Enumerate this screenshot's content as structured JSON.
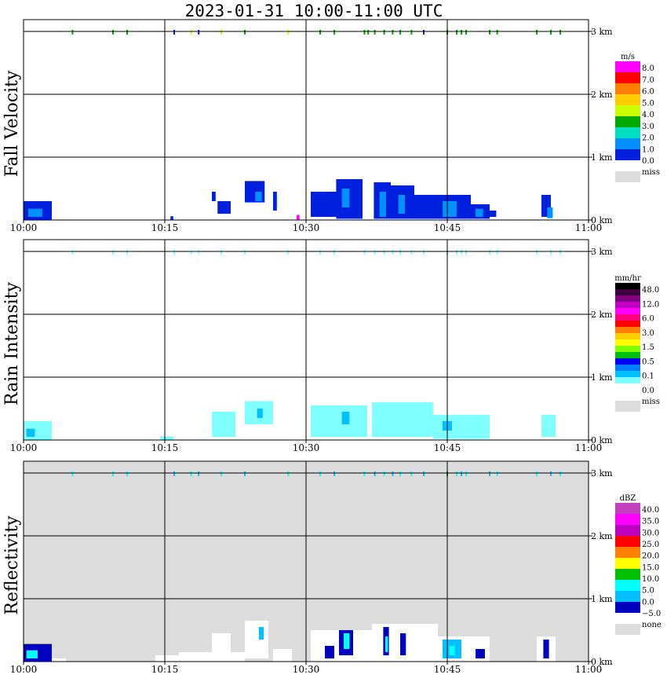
{
  "title": "2023-01-31   10:00-11:00 UTC",
  "chart_data": [
    {
      "type": "heatmap",
      "ylabel": "Fall Velocity",
      "legend_title": "m/s",
      "legend_levels": [
        "8.0",
        "7.0",
        "6.0",
        "5.0",
        "4.0",
        "3.0",
        "2.0",
        "1.0",
        "0.0"
      ],
      "legend_colors": [
        "#ff00ff",
        "#ff0000",
        "#ff8000",
        "#ffcc00",
        "#ccff00",
        "#00aa00",
        "#00e0c0",
        "#0090ff",
        "#0020e0"
      ],
      "missing_label": "miss",
      "missing_color": "#dcdcdc",
      "background": "#ffffff",
      "x_ticks": [
        "10:00",
        "10:15",
        "10:30",
        "10:45",
        "11:00"
      ],
      "y_ticks": [
        "0 km",
        "1 km",
        "2 km",
        "3 km"
      ],
      "xlim_min": [
        0,
        60
      ],
      "ylim_km": [
        0,
        3
      ],
      "cells": [
        {
          "t": 0.0,
          "t2": 3.0,
          "h0": 0.0,
          "h1": 0.3,
          "c": "#0020e0"
        },
        {
          "t": 0.5,
          "t2": 2.0,
          "h0": 0.05,
          "h1": 0.18,
          "c": "#0090ff"
        },
        {
          "t": 15.6,
          "t2": 15.9,
          "h0": 0.0,
          "h1": 0.06,
          "c": "#0020e0"
        },
        {
          "t": 20.0,
          "t2": 20.4,
          "h0": 0.3,
          "h1": 0.45,
          "c": "#0020e0"
        },
        {
          "t": 20.6,
          "t2": 22.0,
          "h0": 0.1,
          "h1": 0.3,
          "c": "#0020e0"
        },
        {
          "t": 23.5,
          "t2": 25.6,
          "h0": 0.28,
          "h1": 0.62,
          "c": "#0020e0"
        },
        {
          "t": 24.6,
          "t2": 25.3,
          "h0": 0.3,
          "h1": 0.45,
          "c": "#0090ff"
        },
        {
          "t": 26.5,
          "t2": 26.9,
          "h0": 0.15,
          "h1": 0.45,
          "c": "#0020e0"
        },
        {
          "t": 29.0,
          "t2": 29.3,
          "h0": 0.0,
          "h1": 0.08,
          "c": "#ff00ff"
        },
        {
          "t": 30.5,
          "t2": 33.5,
          "h0": 0.05,
          "h1": 0.45,
          "c": "#0020e0"
        },
        {
          "t": 33.2,
          "t2": 36.0,
          "h0": 0.02,
          "h1": 0.65,
          "c": "#0020e0"
        },
        {
          "t": 33.8,
          "t2": 34.6,
          "h0": 0.2,
          "h1": 0.5,
          "c": "#0090ff"
        },
        {
          "t": 37.2,
          "t2": 39.0,
          "h0": 0.02,
          "h1": 0.6,
          "c": "#0020e0"
        },
        {
          "t": 37.8,
          "t2": 38.5,
          "h0": 0.05,
          "h1": 0.45,
          "c": "#0090ff"
        },
        {
          "t": 39.0,
          "t2": 41.5,
          "h0": 0.02,
          "h1": 0.55,
          "c": "#0020e0"
        },
        {
          "t": 39.8,
          "t2": 40.5,
          "h0": 0.1,
          "h1": 0.4,
          "c": "#0090ff"
        },
        {
          "t": 41.5,
          "t2": 43.5,
          "h0": 0.02,
          "h1": 0.4,
          "c": "#0020e0"
        },
        {
          "t": 43.5,
          "t2": 47.5,
          "h0": 0.02,
          "h1": 0.4,
          "c": "#0020e0"
        },
        {
          "t": 44.5,
          "t2": 46.0,
          "h0": 0.05,
          "h1": 0.3,
          "c": "#0090ff"
        },
        {
          "t": 47.5,
          "t2": 49.5,
          "h0": 0.02,
          "h1": 0.25,
          "c": "#0020e0"
        },
        {
          "t": 48.0,
          "t2": 48.8,
          "h0": 0.05,
          "h1": 0.18,
          "c": "#0090ff"
        },
        {
          "t": 49.5,
          "t2": 50.2,
          "h0": 0.05,
          "h1": 0.15,
          "c": "#0020e0"
        },
        {
          "t": 55.0,
          "t2": 56.0,
          "h0": 0.05,
          "h1": 0.4,
          "c": "#0020e0"
        },
        {
          "t": 55.6,
          "t2": 56.2,
          "h0": 0.03,
          "h1": 0.2,
          "c": "#0090ff"
        }
      ],
      "top_echoes": [
        {
          "t": 5.2,
          "c": "#00aa00"
        },
        {
          "t": 9.5,
          "c": "#00aa00"
        },
        {
          "t": 11.0,
          "c": "#00aa00"
        },
        {
          "t": 16.0,
          "c": "#0020e0"
        },
        {
          "t": 17.8,
          "c": "#ccff00"
        },
        {
          "t": 18.6,
          "c": "#0020e0"
        },
        {
          "t": 21.0,
          "c": "#ccff00"
        },
        {
          "t": 23.5,
          "c": "#00aa00"
        },
        {
          "t": 28.1,
          "c": "#ccff00"
        },
        {
          "t": 31.5,
          "c": "#00aa00"
        },
        {
          "t": 33.0,
          "c": "#00aa00"
        },
        {
          "t": 36.2,
          "c": "#00aa00"
        },
        {
          "t": 36.6,
          "c": "#00aa00"
        },
        {
          "t": 37.3,
          "c": "#00aa00"
        },
        {
          "t": 38.3,
          "c": "#00aa00"
        },
        {
          "t": 39.2,
          "c": "#00aa00"
        },
        {
          "t": 40.0,
          "c": "#00aa00"
        },
        {
          "t": 41.2,
          "c": "#00aa00"
        },
        {
          "t": 42.5,
          "c": "#0020e0"
        },
        {
          "t": 45.0,
          "c": "#00aa00"
        },
        {
          "t": 46.0,
          "c": "#00aa00"
        },
        {
          "t": 46.5,
          "c": "#00aa00"
        },
        {
          "t": 47.0,
          "c": "#00aa00"
        },
        {
          "t": 49.5,
          "c": "#00aa00"
        },
        {
          "t": 50.3,
          "c": "#00aa00"
        },
        {
          "t": 54.5,
          "c": "#00aa00"
        },
        {
          "t": 56.0,
          "c": "#00aa00"
        },
        {
          "t": 57.0,
          "c": "#00aa00"
        }
      ]
    },
    {
      "type": "heatmap",
      "ylabel": "Rain Intensity",
      "legend_title": "mm/hr",
      "legend_levels": [
        "48.0",
        "12.0",
        "6.0",
        "3.0",
        "1.5",
        "0.5",
        "0.1",
        "0.0"
      ],
      "legend_colors": [
        "#000000",
        "#400040",
        "#800080",
        "#c000c0",
        "#ff00ff",
        "#ff0080",
        "#ff0000",
        "#ff8000",
        "#ffcc00",
        "#ffff00",
        "#80ff00",
        "#00c000",
        "#0000ff",
        "#0080ff",
        "#00c0ff",
        "#80ffff",
        "#ffffff"
      ],
      "missing_label": "miss",
      "missing_color": "#dcdcdc",
      "background": "#ffffff",
      "x_ticks": [
        "10:00",
        "10:15",
        "10:30",
        "10:45",
        "11:00"
      ],
      "y_ticks": [
        "0 km",
        "1 km",
        "2 km",
        "3 km"
      ],
      "xlim_min": [
        0,
        60
      ],
      "ylim_km": [
        0,
        3
      ],
      "cells": [
        {
          "t": 0.0,
          "t2": 3.0,
          "h0": 0.0,
          "h1": 0.3,
          "c": "#80ffff"
        },
        {
          "t": 0.3,
          "t2": 1.2,
          "h0": 0.05,
          "h1": 0.18,
          "c": "#00c0ff"
        },
        {
          "t": 14.5,
          "t2": 15.9,
          "h0": 0.0,
          "h1": 0.06,
          "c": "#80ffff"
        },
        {
          "t": 20.0,
          "t2": 22.5,
          "h0": 0.05,
          "h1": 0.45,
          "c": "#80ffff"
        },
        {
          "t": 23.5,
          "t2": 26.5,
          "h0": 0.25,
          "h1": 0.62,
          "c": "#80ffff"
        },
        {
          "t": 24.8,
          "t2": 25.4,
          "h0": 0.35,
          "h1": 0.5,
          "c": "#00c0ff"
        },
        {
          "t": 30.5,
          "t2": 36.5,
          "h0": 0.05,
          "h1": 0.55,
          "c": "#80ffff"
        },
        {
          "t": 33.8,
          "t2": 34.6,
          "h0": 0.25,
          "h1": 0.45,
          "c": "#00c0ff"
        },
        {
          "t": 37.0,
          "t2": 43.5,
          "h0": 0.05,
          "h1": 0.6,
          "c": "#80ffff"
        },
        {
          "t": 43.5,
          "t2": 49.5,
          "h0": 0.02,
          "h1": 0.4,
          "c": "#80ffff"
        },
        {
          "t": 44.5,
          "t2": 45.5,
          "h0": 0.15,
          "h1": 0.3,
          "c": "#00c0ff"
        },
        {
          "t": 55.0,
          "t2": 56.5,
          "h0": 0.05,
          "h1": 0.4,
          "c": "#80ffff"
        }
      ],
      "top_echoes": [
        {
          "t": 5.2,
          "c": "#80ffff"
        },
        {
          "t": 9.5,
          "c": "#80ffff"
        },
        {
          "t": 11.0,
          "c": "#80ffff"
        },
        {
          "t": 16.0,
          "c": "#80ffff"
        },
        {
          "t": 17.8,
          "c": "#80ffff"
        },
        {
          "t": 18.6,
          "c": "#80ffff"
        },
        {
          "t": 21.0,
          "c": "#80ffff"
        },
        {
          "t": 23.5,
          "c": "#80ffff"
        },
        {
          "t": 28.1,
          "c": "#80ffff"
        },
        {
          "t": 31.5,
          "c": "#80ffff"
        },
        {
          "t": 33.0,
          "c": "#80ffff"
        },
        {
          "t": 36.2,
          "c": "#80ffff"
        },
        {
          "t": 37.3,
          "c": "#80ffff"
        },
        {
          "t": 38.3,
          "c": "#80ffff"
        },
        {
          "t": 39.2,
          "c": "#80ffff"
        },
        {
          "t": 40.0,
          "c": "#80ffff"
        },
        {
          "t": 41.2,
          "c": "#80ffff"
        },
        {
          "t": 42.5,
          "c": "#80ffff"
        },
        {
          "t": 45.0,
          "c": "#80ffff"
        },
        {
          "t": 46.0,
          "c": "#80ffff"
        },
        {
          "t": 46.5,
          "c": "#80ffff"
        },
        {
          "t": 47.0,
          "c": "#80ffff"
        },
        {
          "t": 49.5,
          "c": "#80ffff"
        },
        {
          "t": 50.3,
          "c": "#80ffff"
        },
        {
          "t": 54.5,
          "c": "#80ffff"
        },
        {
          "t": 56.0,
          "c": "#80ffff"
        },
        {
          "t": 57.0,
          "c": "#80ffff"
        }
      ]
    },
    {
      "type": "heatmap",
      "ylabel": "Reflectivity",
      "legend_title": "dBZ",
      "legend_levels": [
        "40.0",
        "35.0",
        "30.0",
        "25.0",
        "20.0",
        "15.0",
        "10.0",
        "5.0",
        "0.0",
        "−5.0"
      ],
      "legend_colors": [
        "#c040c0",
        "#ff00ff",
        "#c000c0",
        "#ff0000",
        "#ff8000",
        "#ffff00",
        "#00c000",
        "#00ffff",
        "#00c0ff",
        "#0000c0"
      ],
      "missing_label": "none",
      "missing_color": "#dcdcdc",
      "background": "#dcdcdc",
      "x_ticks": [
        "10:00",
        "10:15",
        "10:30",
        "10:45",
        "11:00"
      ],
      "y_ticks": [
        "0 km",
        "1 km",
        "2 km",
        "3 km"
      ],
      "xlim_min": [
        0,
        60
      ],
      "ylim_km": [
        0,
        3
      ],
      "cells": [
        {
          "t": 0.0,
          "t2": 3.0,
          "h0": 0.0,
          "h1": 0.28,
          "c": "#0000c0"
        },
        {
          "t": 0.3,
          "t2": 1.5,
          "h0": 0.05,
          "h1": 0.18,
          "c": "#00ffff"
        },
        {
          "t": 3.0,
          "t2": 4.5,
          "h0": 0.0,
          "h1": 0.05,
          "c": "#ffffff"
        },
        {
          "t": 14.0,
          "t2": 16.5,
          "h0": 0.0,
          "h1": 0.1,
          "c": "#ffffff"
        },
        {
          "t": 16.5,
          "t2": 23.5,
          "h0": 0.0,
          "h1": 0.15,
          "c": "#ffffff"
        },
        {
          "t": 20.0,
          "t2": 22.0,
          "h0": 0.1,
          "h1": 0.45,
          "c": "#ffffff"
        },
        {
          "t": 23.5,
          "t2": 26.0,
          "h0": 0.05,
          "h1": 0.65,
          "c": "#ffffff"
        },
        {
          "t": 25.0,
          "t2": 25.5,
          "h0": 0.35,
          "h1": 0.55,
          "c": "#00c0ff"
        },
        {
          "t": 26.5,
          "t2": 28.5,
          "h0": 0.0,
          "h1": 0.2,
          "c": "#ffffff"
        },
        {
          "t": 30.5,
          "t2": 37.0,
          "h0": 0.0,
          "h1": 0.5,
          "c": "#ffffff"
        },
        {
          "t": 32.0,
          "t2": 33.0,
          "h0": 0.05,
          "h1": 0.25,
          "c": "#0000c0"
        },
        {
          "t": 33.5,
          "t2": 35.0,
          "h0": 0.1,
          "h1": 0.5,
          "c": "#0000c0"
        },
        {
          "t": 34.0,
          "t2": 34.6,
          "h0": 0.2,
          "h1": 0.45,
          "c": "#00ffff"
        },
        {
          "t": 37.0,
          "t2": 44.0,
          "h0": 0.0,
          "h1": 0.6,
          "c": "#ffffff"
        },
        {
          "t": 38.2,
          "t2": 38.8,
          "h0": 0.1,
          "h1": 0.55,
          "c": "#0000c0"
        },
        {
          "t": 38.4,
          "t2": 38.7,
          "h0": 0.15,
          "h1": 0.4,
          "c": "#00ffff"
        },
        {
          "t": 40.0,
          "t2": 40.6,
          "h0": 0.1,
          "h1": 0.45,
          "c": "#0000c0"
        },
        {
          "t": 44.0,
          "t2": 49.5,
          "h0": 0.0,
          "h1": 0.4,
          "c": "#ffffff"
        },
        {
          "t": 44.5,
          "t2": 46.5,
          "h0": 0.05,
          "h1": 0.35,
          "c": "#00c0ff"
        },
        {
          "t": 45.2,
          "t2": 45.8,
          "h0": 0.1,
          "h1": 0.25,
          "c": "#00ffff"
        },
        {
          "t": 48.0,
          "t2": 49.0,
          "h0": 0.05,
          "h1": 0.2,
          "c": "#0000c0"
        },
        {
          "t": 54.5,
          "t2": 56.5,
          "h0": 0.0,
          "h1": 0.4,
          "c": "#ffffff"
        },
        {
          "t": 55.2,
          "t2": 55.8,
          "h0": 0.05,
          "h1": 0.35,
          "c": "#0000c0"
        }
      ],
      "top_echoes": [
        {
          "t": 5.2,
          "c": "#00ffff"
        },
        {
          "t": 9.5,
          "c": "#00ffff"
        },
        {
          "t": 11.0,
          "c": "#00ffff"
        },
        {
          "t": 16.0,
          "c": "#00c0ff"
        },
        {
          "t": 17.8,
          "c": "#00ffff"
        },
        {
          "t": 18.6,
          "c": "#00c0ff"
        },
        {
          "t": 21.0,
          "c": "#00ffff"
        },
        {
          "t": 23.5,
          "c": "#00c0ff"
        },
        {
          "t": 28.1,
          "c": "#00ffff"
        },
        {
          "t": 31.5,
          "c": "#00ffff"
        },
        {
          "t": 33.0,
          "c": "#00c0ff"
        },
        {
          "t": 36.2,
          "c": "#00ffff"
        },
        {
          "t": 37.3,
          "c": "#00c0ff"
        },
        {
          "t": 38.3,
          "c": "#00ffff"
        },
        {
          "t": 39.2,
          "c": "#00c0ff"
        },
        {
          "t": 40.0,
          "c": "#00ffff"
        },
        {
          "t": 41.2,
          "c": "#00ffff"
        },
        {
          "t": 42.5,
          "c": "#00c0ff"
        },
        {
          "t": 45.0,
          "c": "#00c000"
        },
        {
          "t": 46.0,
          "c": "#00ffff"
        },
        {
          "t": 46.5,
          "c": "#00c0ff"
        },
        {
          "t": 47.0,
          "c": "#00ffff"
        },
        {
          "t": 49.5,
          "c": "#00c0ff"
        },
        {
          "t": 50.3,
          "c": "#00ffff"
        },
        {
          "t": 54.5,
          "c": "#00ffff"
        },
        {
          "t": 56.0,
          "c": "#00c0ff"
        },
        {
          "t": 57.0,
          "c": "#00ffff"
        }
      ]
    }
  ]
}
